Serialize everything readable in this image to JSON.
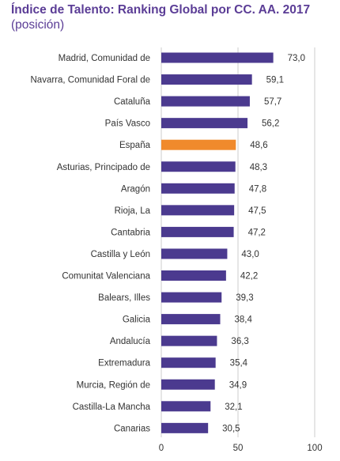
{
  "chart_data": {
    "type": "bar",
    "orientation": "horizontal",
    "title": "Índice de Talento: Ranking Global por CC. AA. 2017",
    "subtitle": "(posición)",
    "categories": [
      "Madrid, Comunidad de",
      "Navarra, Comunidad Foral de",
      "Cataluña",
      "País Vasco",
      "España",
      "Asturias, Principado de",
      "Aragón",
      "Rioja, La",
      "Cantabria",
      "Castilla y León",
      "Comunitat Valenciana",
      "Balears, Illes",
      "Galicia",
      "Andalucía",
      "Extremadura",
      "Murcia, Región de",
      "Castilla-La Mancha",
      "Canarias"
    ],
    "values": [
      73.0,
      59.1,
      57.7,
      56.2,
      48.6,
      48.3,
      47.8,
      47.5,
      47.2,
      43.0,
      42.2,
      39.3,
      38.4,
      36.3,
      35.4,
      34.9,
      32.1,
      30.5
    ],
    "value_labels": [
      "73,0",
      "59,1",
      "57,7",
      "56,2",
      "48,6",
      "48,3",
      "47,8",
      "47,5",
      "47,2",
      "43,0",
      "42,2",
      "39,3",
      "38,4",
      "36,3",
      "35,4",
      "34,9",
      "32,1",
      "30,5"
    ],
    "highlight": "España",
    "xlim": [
      0,
      100
    ],
    "xticks": [
      0,
      50,
      100
    ],
    "xtick_labels": [
      "0",
      "50",
      "100"
    ],
    "grid": "vertical",
    "colors": {
      "bar": "#4b3a8f",
      "highlight": "#f08a2c",
      "grid": "#cccccc"
    }
  }
}
